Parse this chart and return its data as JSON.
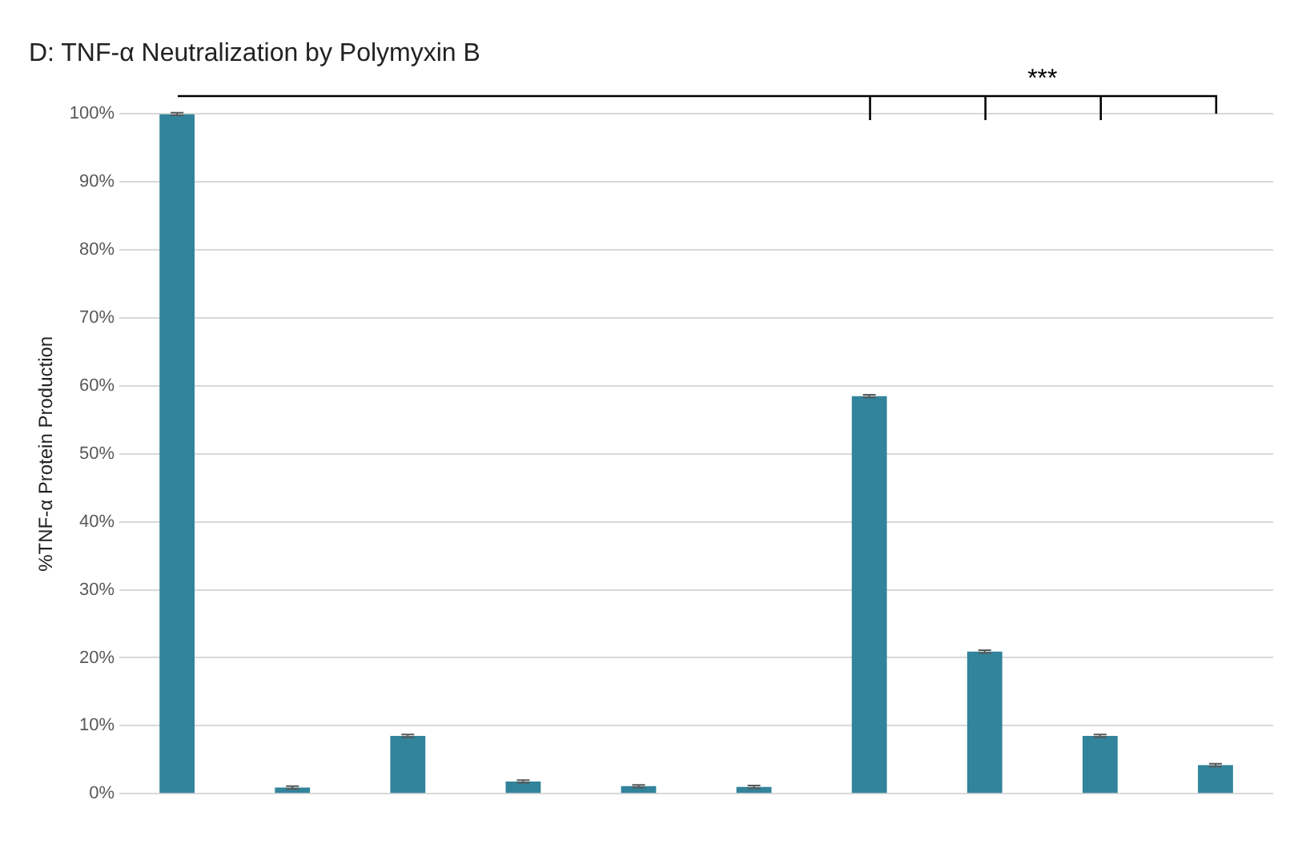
{
  "chart_data": {
    "type": "bar",
    "title": "D: TNF-α Neutralization by Polymyxin B",
    "ylabel": "%TNF-α Protein Production",
    "categories": [
      null,
      null,
      null,
      null,
      null,
      null,
      null,
      null,
      null,
      null
    ],
    "values": [
      100,
      0.9,
      8.5,
      1.8,
      1.1,
      1.0,
      58.5,
      20.9,
      8.5,
      4.2
    ],
    "errors": [
      0.2,
      0.2,
      0.2,
      0.2,
      0.2,
      0.2,
      0.2,
      0.2,
      0.2,
      0.2
    ],
    "color": "#31849b",
    "ylim": [
      0,
      100
    ],
    "yticks": [
      {
        "value": 0,
        "label": "0%"
      },
      {
        "value": 10,
        "label": "10%"
      },
      {
        "value": 20,
        "label": "20%"
      },
      {
        "value": 30,
        "label": "30%"
      },
      {
        "value": 40,
        "label": "40%"
      },
      {
        "value": 50,
        "label": "50%"
      },
      {
        "value": 60,
        "label": "60%"
      },
      {
        "value": 70,
        "label": "70%"
      },
      {
        "value": 80,
        "label": "80%"
      },
      {
        "value": 90,
        "label": "90%"
      },
      {
        "value": 100,
        "label": "100%"
      }
    ],
    "grid": "y",
    "annotations": [
      "***"
    ]
  }
}
